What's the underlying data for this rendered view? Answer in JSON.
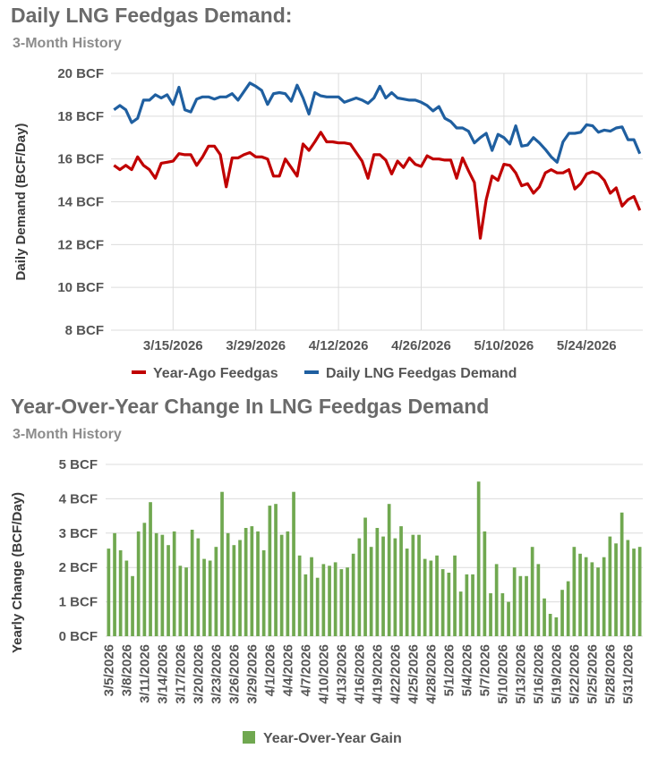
{
  "charts": {
    "top": {
      "title": "Daily LNG Feedgas Demand:",
      "subtitle": "3-Month History"
    },
    "bottom": {
      "title": "Year-Over-Year Change In LNG Feedgas Demand",
      "subtitle": "3-Month History"
    }
  },
  "chart_data": [
    {
      "type": "line",
      "title": "Daily LNG Feedgas Demand:",
      "subtitle": "3-Month History",
      "ylabel": "Daily Demand (BCF/Day)",
      "ylim": [
        8,
        20
      ],
      "yticks": [
        "20 BCF",
        "18 BCF",
        "16 BCF",
        "14 BCF",
        "12 BCF",
        "10 BCF",
        "8 BCF"
      ],
      "ytick_values": [
        20,
        18,
        16,
        14,
        12,
        10,
        8
      ],
      "xticks": [
        {
          "label": "3/15/2026",
          "index": 10
        },
        {
          "label": "3/29/2026",
          "index": 24
        },
        {
          "label": "4/12/2026",
          "index": 38
        },
        {
          "label": "4/26/2026",
          "index": 52
        },
        {
          "label": "5/10/2026",
          "index": 66
        },
        {
          "label": "5/24/2026",
          "index": 80
        }
      ],
      "x_start": "3/5/2026",
      "x_end": "6/1/2026",
      "grid": "horizontal",
      "legend_position": "bottom",
      "series": [
        {
          "name": "Year-Ago Feedgas",
          "color": "#c00000",
          "values": [
            15.7,
            15.5,
            15.7,
            15.5,
            16.1,
            15.7,
            15.5,
            15.1,
            15.8,
            15.85,
            15.9,
            16.25,
            16.2,
            16.2,
            15.7,
            16.1,
            16.6,
            16.6,
            16.2,
            14.7,
            16.05,
            16.05,
            16.2,
            16.3,
            16.1,
            16.1,
            16.0,
            15.2,
            15.2,
            16.0,
            15.6,
            15.2,
            16.7,
            16.4,
            16.8,
            17.25,
            16.8,
            16.8,
            16.75,
            16.75,
            16.7,
            16.3,
            15.9,
            15.1,
            16.2,
            16.2,
            15.95,
            15.3,
            15.9,
            15.6,
            16.05,
            15.75,
            15.65,
            16.15,
            16.0,
            16.0,
            15.95,
            15.95,
            15.1,
            16.05,
            15.45,
            14.9,
            12.3,
            14.1,
            15.2,
            15.0,
            15.75,
            15.7,
            15.35,
            14.75,
            14.85,
            14.4,
            14.7,
            15.35,
            15.5,
            15.35,
            15.35,
            15.5,
            14.6,
            14.85,
            15.3,
            15.4,
            15.3,
            15.0,
            14.4,
            14.65,
            13.8,
            14.1,
            14.25,
            13.6
          ]
        },
        {
          "name": "Daily LNG Feedgas Demand",
          "color": "#1f5fa0",
          "values": [
            18.3,
            18.5,
            18.3,
            17.7,
            17.9,
            18.75,
            18.75,
            19.0,
            18.85,
            19.0,
            18.55,
            19.35,
            18.3,
            18.2,
            18.8,
            18.9,
            18.9,
            18.8,
            18.9,
            18.9,
            19.05,
            18.75,
            19.15,
            19.55,
            19.4,
            19.2,
            18.55,
            19.05,
            19.1,
            19.05,
            18.7,
            19.45,
            18.85,
            18.1,
            19.1,
            18.95,
            18.9,
            18.9,
            18.9,
            18.65,
            18.75,
            18.85,
            18.75,
            18.6,
            18.85,
            19.4,
            18.85,
            19.1,
            18.85,
            18.8,
            18.75,
            18.75,
            18.65,
            18.5,
            18.25,
            18.45,
            17.9,
            17.75,
            17.45,
            17.45,
            17.3,
            16.75,
            17.0,
            17.2,
            16.4,
            17.15,
            17.0,
            16.7,
            17.55,
            16.6,
            16.65,
            17.0,
            16.75,
            16.45,
            16.1,
            15.85,
            16.8,
            17.2,
            17.2,
            17.25,
            17.6,
            17.55,
            17.25,
            17.35,
            17.3,
            17.45,
            17.5,
            16.9,
            16.9,
            16.25
          ]
        }
      ]
    },
    {
      "type": "bar",
      "title": "Year-Over-Year Change In LNG Feedgas Demand",
      "subtitle": "3-Month History",
      "ylabel": "Yearly Change (BCF/Day)",
      "ylim": [
        0,
        5
      ],
      "yticks": [
        "5 BCF",
        "4 BCF",
        "3 BCF",
        "2 BCF",
        "1 BCF",
        "0 BCF"
      ],
      "ytick_values": [
        5,
        4,
        3,
        2,
        1,
        0
      ],
      "xticks": [
        {
          "label": "3/5/2026",
          "index": 0
        },
        {
          "label": "3/8/2026",
          "index": 3
        },
        {
          "label": "3/11/2026",
          "index": 6
        },
        {
          "label": "3/14/2026",
          "index": 9
        },
        {
          "label": "3/17/2026",
          "index": 12
        },
        {
          "label": "3/20/2026",
          "index": 15
        },
        {
          "label": "3/23/2026",
          "index": 18
        },
        {
          "label": "3/26/2026",
          "index": 21
        },
        {
          "label": "3/29/2026",
          "index": 24
        },
        {
          "label": "4/1/2026",
          "index": 27
        },
        {
          "label": "4/4/2026",
          "index": 30
        },
        {
          "label": "4/7/2026",
          "index": 33
        },
        {
          "label": "4/10/2026",
          "index": 36
        },
        {
          "label": "4/13/2026",
          "index": 39
        },
        {
          "label": "4/16/2026",
          "index": 42
        },
        {
          "label": "4/19/2026",
          "index": 45
        },
        {
          "label": "4/22/2026",
          "index": 48
        },
        {
          "label": "4/25/2026",
          "index": 51
        },
        {
          "label": "4/28/2026",
          "index": 54
        },
        {
          "label": "5/1/2026",
          "index": 57
        },
        {
          "label": "5/4/2026",
          "index": 60
        },
        {
          "label": "5/7/2026",
          "index": 63
        },
        {
          "label": "5/10/2026",
          "index": 66
        },
        {
          "label": "5/13/2026",
          "index": 69
        },
        {
          "label": "5/16/2026",
          "index": 72
        },
        {
          "label": "5/19/2026",
          "index": 75
        },
        {
          "label": "5/22/2026",
          "index": 78
        },
        {
          "label": "5/25/2026",
          "index": 81
        },
        {
          "label": "5/28/2026",
          "index": 84
        },
        {
          "label": "5/31/2026",
          "index": 87
        }
      ],
      "grid": "horizontal",
      "legend_position": "bottom",
      "series": [
        {
          "name": "Year-Over-Year Gain",
          "color": "#70a850",
          "values": [
            2.55,
            3.0,
            2.5,
            2.2,
            1.75,
            3.05,
            3.3,
            3.9,
            3.0,
            2.95,
            2.65,
            3.05,
            2.05,
            2.0,
            3.1,
            2.85,
            2.25,
            2.2,
            2.6,
            4.2,
            3.0,
            2.65,
            2.8,
            3.15,
            3.2,
            3.05,
            2.5,
            3.8,
            3.85,
            2.95,
            3.05,
            4.2,
            2.35,
            1.8,
            2.3,
            1.7,
            2.1,
            2.05,
            2.15,
            1.95,
            2.0,
            2.4,
            2.85,
            3.45,
            2.6,
            3.15,
            2.9,
            3.85,
            2.85,
            3.2,
            2.55,
            2.95,
            2.95,
            2.25,
            2.2,
            2.35,
            1.95,
            1.85,
            2.35,
            1.3,
            1.8,
            1.8,
            4.5,
            3.05,
            1.25,
            2.1,
            1.25,
            1.0,
            2.0,
            1.75,
            1.75,
            2.6,
            2.1,
            1.1,
            0.65,
            0.55,
            1.35,
            1.6,
            2.6,
            2.4,
            2.3,
            2.15,
            2.0,
            2.3,
            2.9,
            2.7,
            3.6,
            2.8,
            2.55,
            2.6
          ]
        }
      ]
    }
  ]
}
